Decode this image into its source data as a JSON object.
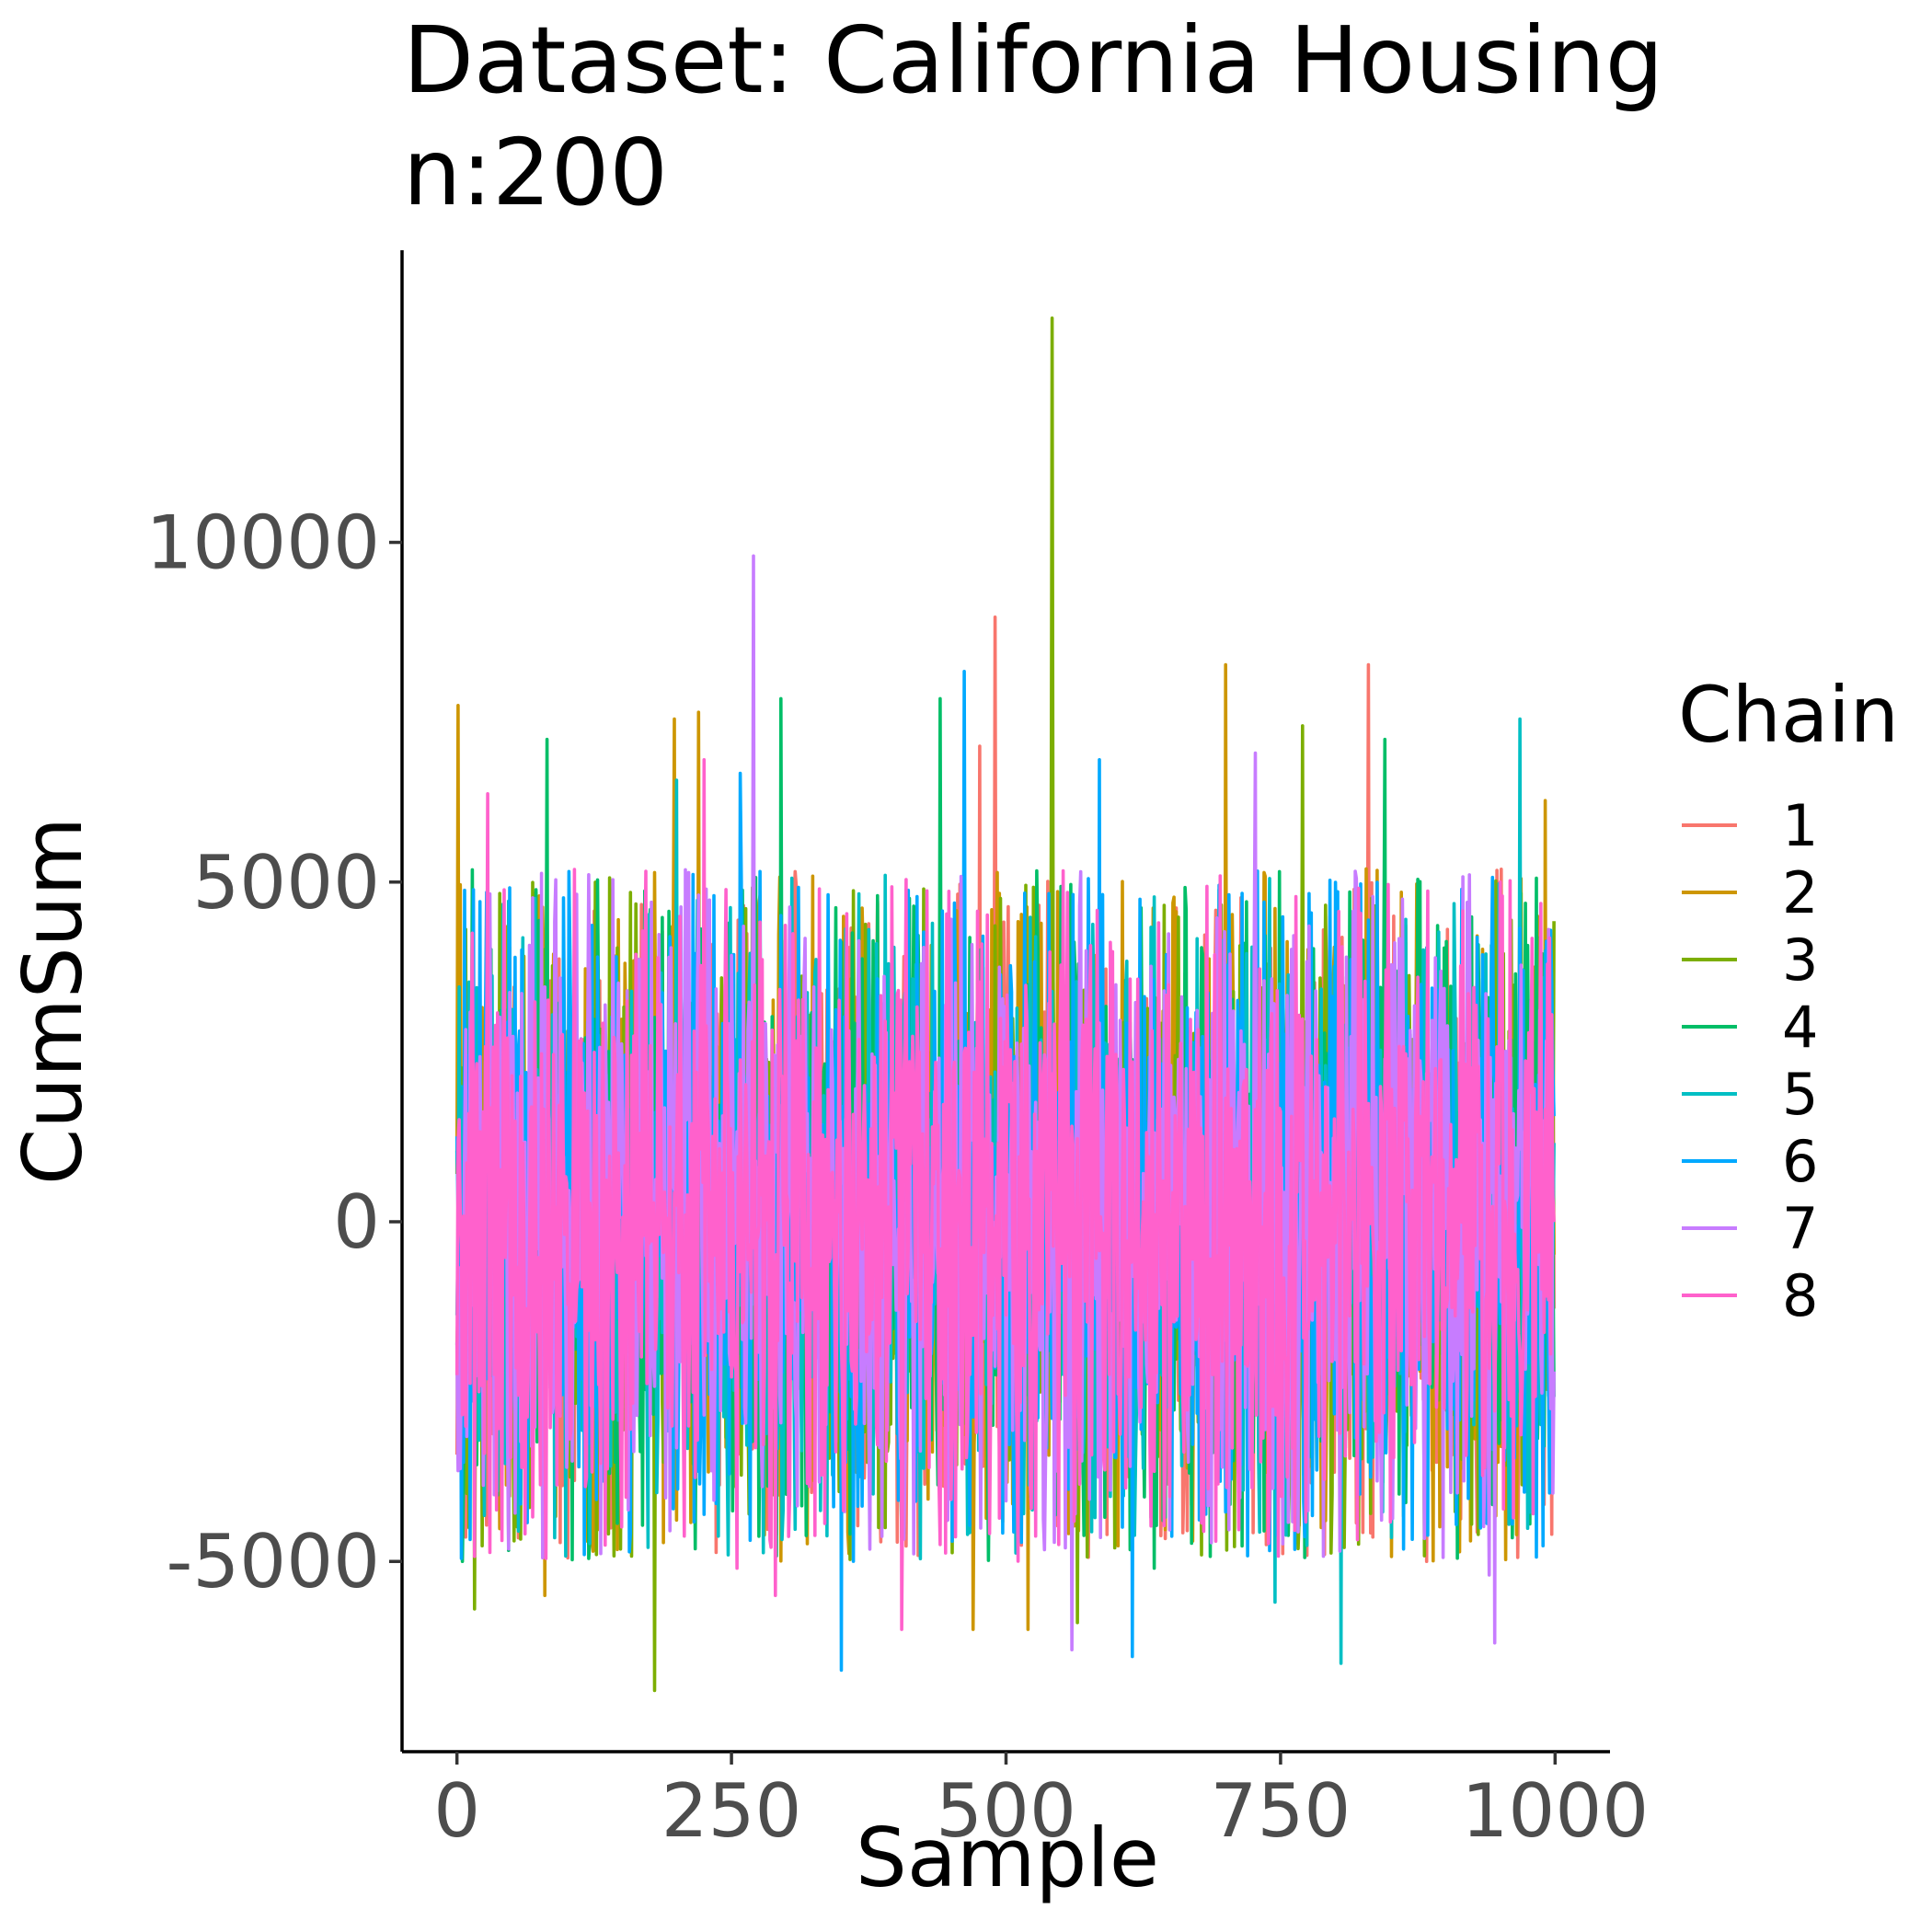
{
  "chart_data": {
    "type": "line",
    "title_line1": "Dataset: California Housing",
    "title_line2": "n:200",
    "xlabel": "Sample",
    "ylabel": "CumSum",
    "xlim": [
      -50,
      1050
    ],
    "ylim": [
      -7800,
      14300
    ],
    "x_ticks": [
      0,
      250,
      500,
      750,
      1000
    ],
    "x_tick_labels": [
      "0",
      "250",
      "500",
      "750",
      "1000"
    ],
    "y_ticks": [
      -5000,
      0,
      5000,
      10000
    ],
    "y_tick_labels": [
      "-5000",
      "0",
      "5000",
      "10000"
    ],
    "grid": false,
    "legend": {
      "title": "Chain",
      "placement": "right"
    },
    "n_samples": 1000,
    "series_spread": 2300,
    "series": [
      {
        "name": "1",
        "color": "#F8766D",
        "spikes": [
          [
            490,
            8900
          ],
          [
            830,
            8200
          ],
          [
            476,
            7000
          ],
          [
            883,
            -5000
          ],
          [
            997,
            -4600
          ]
        ]
      },
      {
        "name": "2",
        "color": "#CD9600",
        "spikes": [
          [
            1,
            7600
          ],
          [
            198,
            7400
          ],
          [
            700,
            8200
          ],
          [
            220,
            7500
          ],
          [
            470,
            -6000
          ],
          [
            520,
            -6000
          ],
          [
            80,
            -5500
          ],
          [
            991,
            6200
          ]
        ]
      },
      {
        "name": "3",
        "color": "#7CAE00",
        "spikes": [
          [
            542,
            13300
          ],
          [
            180,
            -6900
          ],
          [
            16,
            -5700
          ],
          [
            565,
            -5900
          ],
          [
            770,
            7300
          ]
        ]
      },
      {
        "name": "4",
        "color": "#00BE67",
        "spikes": [
          [
            295,
            7700
          ],
          [
            82,
            7100
          ],
          [
            440,
            7700
          ],
          [
            5,
            -5000
          ],
          [
            845,
            7100
          ],
          [
            635,
            -5100
          ]
        ]
      },
      {
        "name": "5",
        "color": "#00BFC4",
        "spikes": [
          [
            805,
            -6500
          ],
          [
            968,
            7400
          ],
          [
            200,
            6500
          ],
          [
            35,
            -3900
          ],
          [
            745,
            -5600
          ]
        ]
      },
      {
        "name": "6",
        "color": "#00A9FF",
        "spikes": [
          [
            462,
            8100
          ],
          [
            350,
            -6600
          ],
          [
            615,
            -6400
          ],
          [
            258,
            6600
          ],
          [
            585,
            6800
          ]
        ]
      },
      {
        "name": "7",
        "color": "#C77CFF",
        "spikes": [
          [
            270,
            9800
          ],
          [
            945,
            -6200
          ],
          [
            560,
            -6300
          ],
          [
            940,
            -5200
          ],
          [
            727,
            6900
          ]
        ]
      },
      {
        "name": "8",
        "color": "#FF61CC",
        "spikes": [
          [
            405,
            -6000
          ],
          [
            225,
            6800
          ],
          [
            290,
            -5500
          ],
          [
            255,
            -5100
          ],
          [
            28,
            6300
          ]
        ]
      }
    ]
  }
}
